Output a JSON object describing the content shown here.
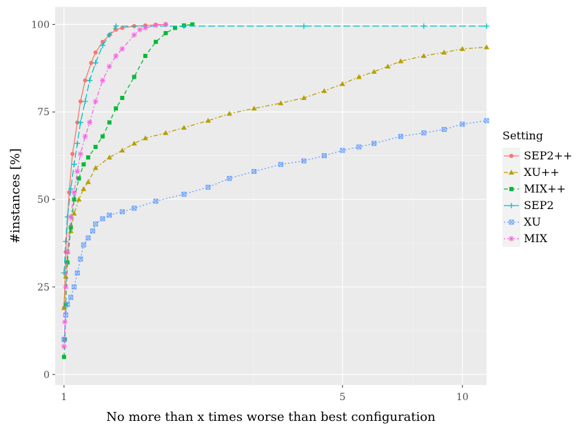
{
  "chart_data": {
    "type": "line",
    "xlabel": "No more than x times worse than best configuration",
    "ylabel": "#instances [%]",
    "x_scale": "log",
    "xlim": [
      0.95,
      11.5
    ],
    "ylim": [
      -3,
      105
    ],
    "x_ticks": [
      {
        "value": 1,
        "label": "1"
      },
      {
        "value": 5,
        "label": "5"
      },
      {
        "value": 10,
        "label": "10"
      }
    ],
    "y_ticks": [
      {
        "value": 0,
        "label": "0"
      },
      {
        "value": 25,
        "label": "25"
      },
      {
        "value": 50,
        "label": "50"
      },
      {
        "value": 75,
        "label": "75"
      },
      {
        "value": 100,
        "label": "100"
      }
    ],
    "grid": true,
    "legend": {
      "title": "Setting",
      "position": "right"
    },
    "series": [
      {
        "name": "SEP2++",
        "color": "#F8766D",
        "marker": "circle",
        "dash": "solid",
        "x": [
          1.0,
          1.01,
          1.03,
          1.05,
          1.08,
          1.1,
          1.13,
          1.17,
          1.2,
          1.25,
          1.3,
          1.35,
          1.4,
          1.5,
          1.6,
          1.7,
          1.8
        ],
        "y": [
          19,
          35,
          52,
          63,
          72,
          78,
          84,
          89,
          92,
          95,
          97,
          98.5,
          99,
          99.5,
          99.7,
          99.9,
          100
        ]
      },
      {
        "name": "XU++",
        "color": "#B79F00",
        "marker": "triangle",
        "dash": "dashdot",
        "x": [
          1.0,
          1.01,
          1.02,
          1.04,
          1.06,
          1.09,
          1.12,
          1.15,
          1.2,
          1.3,
          1.4,
          1.5,
          1.6,
          1.8,
          2.0,
          2.3,
          2.6,
          3.0,
          3.5,
          4.0,
          4.5,
          5.0,
          5.5,
          6.0,
          6.5,
          7.0,
          8.0,
          9.0,
          10.0,
          11.5
        ],
        "y": [
          19,
          28,
          35,
          41,
          46,
          50,
          53,
          55,
          59,
          62,
          64,
          66,
          67.5,
          69,
          70.5,
          72.5,
          74.5,
          76,
          77.5,
          79,
          81,
          83,
          85,
          86.5,
          88,
          89.5,
          91,
          92,
          93,
          93.5
        ]
      },
      {
        "name": "MIX++",
        "color": "#00BA38",
        "marker": "square",
        "dash": "dashed",
        "x": [
          1.0,
          1.005,
          1.01,
          1.02,
          1.04,
          1.06,
          1.09,
          1.12,
          1.15,
          1.2,
          1.25,
          1.3,
          1.35,
          1.4,
          1.5,
          1.6,
          1.7,
          1.8,
          1.9,
          2.0,
          2.1
        ],
        "y": [
          5,
          10,
          20,
          32,
          42,
          50,
          56,
          60,
          62,
          65,
          68,
          72,
          76,
          79,
          85,
          91,
          95,
          97.5,
          99,
          99.7,
          100
        ]
      },
      {
        "name": "SEP2",
        "color": "#00BFC4",
        "marker": "plus",
        "dash": "longdash",
        "x": [
          1.0,
          1.01,
          1.02,
          1.04,
          1.06,
          1.08,
          1.1,
          1.13,
          1.16,
          1.2,
          1.25,
          1.3,
          1.35,
          2.0,
          4.0,
          8.0,
          11.5
        ],
        "y": [
          29,
          38,
          45,
          53,
          60,
          66,
          72,
          78,
          84,
          89,
          94,
          97,
          99.5,
          99.5,
          99.5,
          99.5,
          99.5
        ]
      },
      {
        "name": "XU",
        "color": "#619CFF",
        "marker": "squarex",
        "dash": "dotted",
        "x": [
          1.0,
          1.01,
          1.02,
          1.04,
          1.06,
          1.08,
          1.1,
          1.12,
          1.15,
          1.18,
          1.2,
          1.25,
          1.3,
          1.4,
          1.5,
          1.7,
          2.0,
          2.3,
          2.6,
          3.0,
          3.5,
          4.0,
          4.5,
          5.0,
          5.5,
          6.0,
          7.0,
          8.0,
          9.0,
          10.0,
          11.5
        ],
        "y": [
          10,
          17,
          20,
          22,
          25,
          29,
          33,
          37,
          39,
          41,
          43,
          44.5,
          45.5,
          46.5,
          47.5,
          49.5,
          51.5,
          53.5,
          56,
          58,
          60,
          61,
          62.5,
          64,
          65,
          66,
          68,
          69,
          70,
          71.5,
          72.5
        ]
      },
      {
        "name": "MIX",
        "color": "#F564E3",
        "marker": "asterisk",
        "dash": "dotdash",
        "x": [
          1.0,
          1.005,
          1.01,
          1.02,
          1.04,
          1.06,
          1.08,
          1.1,
          1.13,
          1.16,
          1.2,
          1.25,
          1.3,
          1.35,
          1.4,
          1.5,
          1.55,
          1.6,
          1.7,
          1.8
        ],
        "y": [
          8,
          15,
          25,
          35,
          45,
          52,
          58,
          63,
          68,
          72,
          78,
          84,
          88,
          91,
          93,
          97,
          98.5,
          99,
          99.7,
          100
        ]
      }
    ]
  }
}
